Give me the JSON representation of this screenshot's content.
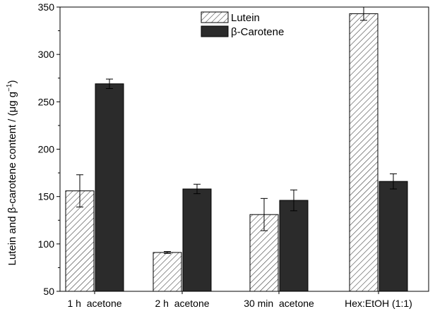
{
  "chart_data": {
    "type": "bar",
    "categories": [
      "1 h  acetone",
      "2 h  acetone",
      "30 min  acetone",
      "Hex:EtOH (1:1)"
    ],
    "series": [
      {
        "name": "Lutein",
        "values": [
          156,
          91,
          131,
          343
        ],
        "errors": [
          17,
          1,
          17,
          7
        ],
        "style": "hatched",
        "color": "#ffffff"
      },
      {
        "name": "β-Carotene",
        "values": [
          269,
          158,
          146,
          166
        ],
        "errors": [
          5,
          5,
          11,
          8
        ],
        "style": "solid",
        "color": "#2b2b2b"
      }
    ],
    "ylabel_main": "Lutein and β-carotene content / (μg g",
    "ylabel_sup": "−1",
    "ylabel_tail": ")",
    "ylim": [
      50,
      350
    ],
    "yticks": [
      50,
      100,
      150,
      200,
      250,
      300,
      350
    ],
    "grid": false,
    "legend_position": "top-center"
  }
}
